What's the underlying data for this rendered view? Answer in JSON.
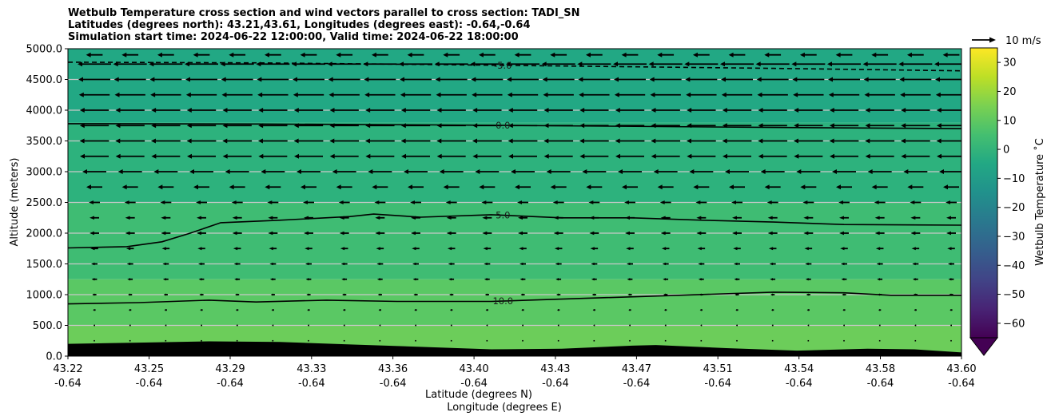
{
  "chart_data": {
    "type": "heatmap",
    "title_lines": [
      "Wetbulb Temperature cross section and wind vectors parallel to cross section: TADI_SN",
      "Latitudes (degrees north): 43.21,43.61, Longitudes (degrees east): -0.64,-0.64",
      "Simulation start time: 2024-06-22 12:00:00, Valid time: 2024-06-22 18:00:00"
    ],
    "xlabel_lines": [
      "Latitude (degrees N)",
      "Longitude (degrees E)"
    ],
    "ylabel": "Altitude (meters)",
    "x_range": [
      43.22,
      43.6
    ],
    "ylim": [
      0,
      5000
    ],
    "x_ticks": [
      {
        "lat": "43.22",
        "lon": "-0.64",
        "value": 43.22
      },
      {
        "lat": "43.25",
        "lon": "-0.64",
        "value": 43.2545
      },
      {
        "lat": "43.29",
        "lon": "-0.64",
        "value": 43.289
      },
      {
        "lat": "43.33",
        "lon": "-0.64",
        "value": 43.3236
      },
      {
        "lat": "43.36",
        "lon": "-0.64",
        "value": 43.3582
      },
      {
        "lat": "43.40",
        "lon": "-0.64",
        "value": 43.3927
      },
      {
        "lat": "43.43",
        "lon": "-0.64",
        "value": 43.4273
      },
      {
        "lat": "43.47",
        "lon": "-0.64",
        "value": 43.4618
      },
      {
        "lat": "43.51",
        "lon": "-0.64",
        "value": 43.4964
      },
      {
        "lat": "43.54",
        "lon": "-0.64",
        "value": 43.5309
      },
      {
        "lat": "43.58",
        "lon": "-0.64",
        "value": 43.5655
      },
      {
        "lat": "43.60",
        "lon": "-0.64",
        "value": 43.6
      }
    ],
    "y_ticks": [
      "0.0",
      "500.0",
      "1000.0",
      "1500.0",
      "2000.0",
      "2500.0",
      "3000.0",
      "3500.0",
      "4000.0",
      "4500.0",
      "5000.0"
    ],
    "y_tick_values": [
      0,
      500,
      1000,
      1500,
      2000,
      2500,
      3000,
      3500,
      4000,
      4500,
      5000
    ],
    "grid": "horizontal",
    "temperature_bands": [
      {
        "z_bottom": 0,
        "z_top": 500,
        "color": "#6ccd5a"
      },
      {
        "z_bottom": 500,
        "z_top": 1250,
        "color": "#5ac864"
      },
      {
        "z_bottom": 1250,
        "z_top": 2500,
        "color": "#3fbc73"
      },
      {
        "z_bottom": 2500,
        "z_top": 3800,
        "color": "#2db27d"
      },
      {
        "z_bottom": 3800,
        "z_top": 5000,
        "color": "#22a884"
      }
    ],
    "contours": [
      {
        "level": "-5.0",
        "style": "dashed",
        "points": [
          [
            43.22,
            4780
          ],
          [
            43.3,
            4770
          ],
          [
            43.38,
            4740
          ],
          [
            43.45,
            4710
          ],
          [
            43.52,
            4680
          ],
          [
            43.6,
            4640
          ]
        ]
      },
      {
        "level": "0.0",
        "style": "solid",
        "points": [
          [
            43.22,
            3780
          ],
          [
            43.3,
            3775
          ],
          [
            43.38,
            3760
          ],
          [
            43.45,
            3740
          ],
          [
            43.52,
            3720
          ],
          [
            43.6,
            3700
          ]
        ]
      },
      {
        "level": "5.0",
        "style": "solid",
        "points": [
          [
            43.22,
            1760
          ],
          [
            43.245,
            1780
          ],
          [
            43.26,
            1860
          ],
          [
            43.272,
            2000
          ],
          [
            43.285,
            2170
          ],
          [
            43.31,
            2210
          ],
          [
            43.34,
            2270
          ],
          [
            43.35,
            2310
          ],
          [
            43.37,
            2260
          ],
          [
            43.4,
            2300
          ],
          [
            43.43,
            2250
          ],
          [
            43.46,
            2250
          ],
          [
            43.49,
            2210
          ],
          [
            43.52,
            2180
          ],
          [
            43.55,
            2140
          ],
          [
            43.6,
            2130
          ]
        ]
      },
      {
        "level": "10.0",
        "style": "solid",
        "points": [
          [
            43.22,
            850
          ],
          [
            43.25,
            870
          ],
          [
            43.28,
            910
          ],
          [
            43.3,
            880
          ],
          [
            43.33,
            910
          ],
          [
            43.36,
            890
          ],
          [
            43.4,
            890
          ],
          [
            43.44,
            940
          ],
          [
            43.48,
            990
          ],
          [
            43.52,
            1040
          ],
          [
            43.55,
            1030
          ],
          [
            43.57,
            990
          ],
          [
            43.6,
            990
          ]
        ]
      }
    ],
    "terrain": [
      [
        43.22,
        200
      ],
      [
        43.25,
        220
      ],
      [
        43.28,
        240
      ],
      [
        43.31,
        230
      ],
      [
        43.34,
        190
      ],
      [
        43.37,
        150
      ],
      [
        43.4,
        110
      ],
      [
        43.43,
        120
      ],
      [
        43.46,
        170
      ],
      [
        43.47,
        180
      ],
      [
        43.5,
        130
      ],
      [
        43.53,
        90
      ],
      [
        43.56,
        120
      ],
      [
        43.58,
        110
      ],
      [
        43.6,
        60
      ]
    ],
    "wind_vectors": {
      "levels_m": [
        4900,
        4750,
        4500,
        4250,
        4000,
        3750,
        3500,
        3250,
        3000,
        2750,
        2500,
        2250,
        2000,
        1750,
        1500,
        1250,
        1000,
        750,
        500,
        250
      ],
      "speed_ms": [
        5.2,
        10.5,
        10.0,
        9.6,
        9.1,
        9.1,
        9.2,
        9.0,
        7.5,
        5.0,
        3.5,
        3.0,
        3.0,
        2.4,
        2.0,
        1.7,
        1.3,
        0.8,
        0.5,
        0.3
      ],
      "direction": "southward (toward lower latitude)",
      "reference": "10 m/s"
    },
    "colorbar": {
      "label": "Wetbulb Temperature $^\\circ$C",
      "label_display": "Wetbulb Temperature ˚C",
      "min": -65,
      "max": 35,
      "ticks": [
        "30",
        "20",
        "10",
        "0",
        "−10",
        "−20",
        "−30",
        "−40",
        "−50",
        "−60"
      ],
      "tick_values": [
        30,
        20,
        10,
        0,
        -10,
        -20,
        -30,
        -40,
        -50,
        -60
      ],
      "extend": "min",
      "colormap": "viridis"
    }
  }
}
